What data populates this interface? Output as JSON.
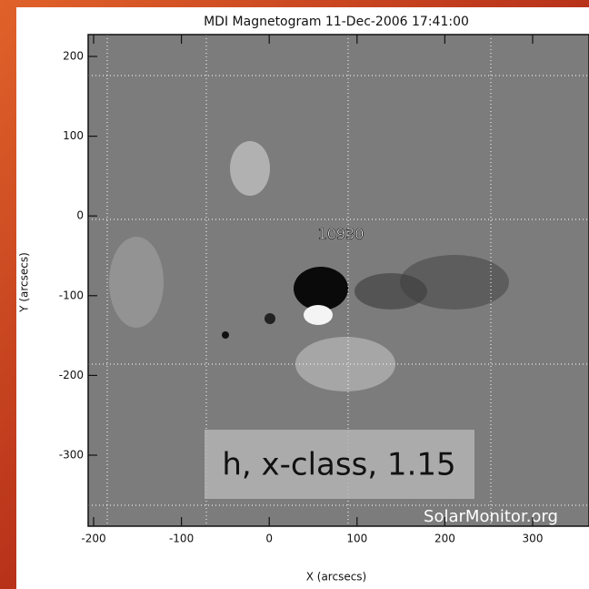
{
  "title": "MDI Magnetogram 11-Dec-2006 17:41:00",
  "x_axis": {
    "label": "X (arcsecs)",
    "ticks": [
      "-200",
      "-100",
      "0",
      "100",
      "200",
      "300"
    ]
  },
  "y_axis": {
    "label": "Y (arcsecs)",
    "ticks": [
      "200",
      "100",
      "0",
      "-100",
      "-200",
      "-300"
    ]
  },
  "region_label": "10930",
  "caption": "h, x-class, 1.15",
  "watermark": "SolarMonitor.org"
}
